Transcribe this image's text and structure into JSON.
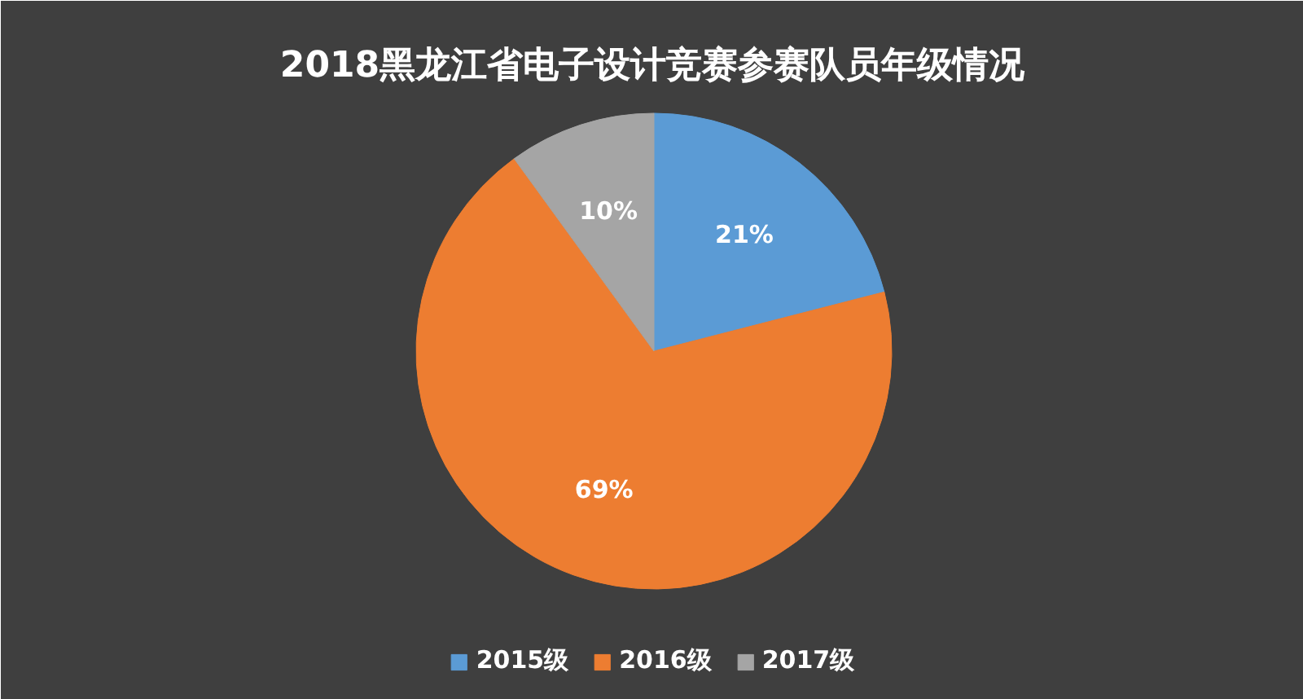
{
  "chart_data": {
    "type": "pie",
    "title": "2018黑龙江省电子设计竞赛参赛队员年级情况",
    "categories": [
      "2015级",
      "2016级",
      "2017级"
    ],
    "values": [
      21,
      69,
      10
    ],
    "colors": [
      "#5b9bd5",
      "#ed7d31",
      "#a5a5a5"
    ],
    "value_labels": [
      "21%",
      "69%",
      "10%"
    ],
    "legend": "bottom"
  }
}
